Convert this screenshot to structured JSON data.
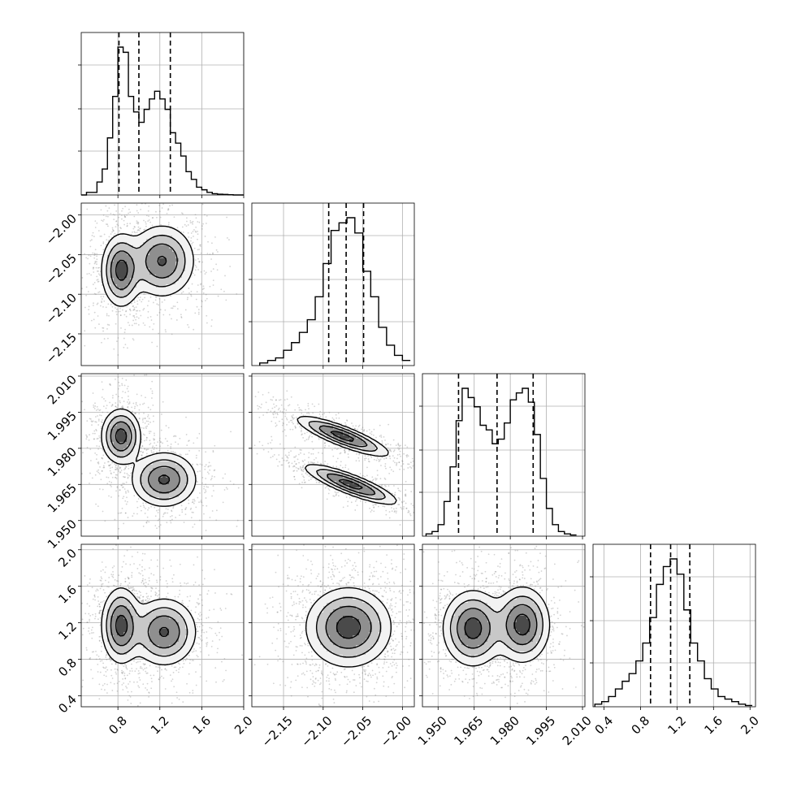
{
  "chart_data": {
    "type": "corner",
    "grid": true,
    "variables": [
      {
        "range": [
          0.45,
          2.0
        ],
        "ticks": [
          0.8,
          1.2,
          1.6,
          2.0
        ],
        "tick_labels": [
          "0.8",
          "1.2",
          "1.6",
          "2.0"
        ],
        "quantiles": [
          0.81,
          1.0,
          1.3
        ],
        "histogram": {
          "bins": [
            0.45,
            0.5,
            0.55,
            0.6,
            0.65,
            0.7,
            0.75,
            0.8,
            0.85,
            0.9,
            0.95,
            1.0,
            1.05,
            1.1,
            1.15,
            1.2,
            1.25,
            1.3,
            1.35,
            1.4,
            1.45,
            1.5,
            1.55,
            1.6,
            1.65,
            1.7,
            1.75,
            1.8,
            1.85,
            1.9,
            1.95,
            2.0
          ],
          "counts": [
            0,
            1,
            1,
            5,
            10,
            22,
            38,
            57,
            55,
            38,
            32,
            28,
            33,
            37,
            40,
            37,
            33,
            24,
            20,
            15,
            9,
            6,
            3,
            2,
            1,
            0.5,
            0.3,
            0.2,
            0.1,
            0,
            0
          ]
        }
      },
      {
        "range": [
          -2.19,
          -1.985
        ],
        "ticks": [
          -2.15,
          -2.1,
          -2.05,
          -2.0
        ],
        "tick_labels": [
          "−2.15",
          "−2.10",
          "−2.05",
          "−2.00"
        ],
        "quantiles": [
          -2.093,
          -2.071,
          -2.049
        ],
        "histogram": {
          "bins": [
            -2.18,
            -2.17,
            -2.16,
            -2.15,
            -2.14,
            -2.13,
            -2.12,
            -2.11,
            -2.1,
            -2.09,
            -2.08,
            -2.07,
            -2.06,
            -2.05,
            -2.04,
            -2.03,
            -2.02,
            -2.01,
            -2.0,
            -1.99
          ],
          "counts": [
            1,
            2,
            3,
            6,
            9,
            13,
            18,
            27,
            40,
            53,
            56,
            58,
            52,
            37,
            27,
            15,
            8,
            4,
            2
          ]
        }
      },
      {
        "range": [
          1.9435,
          2.011
        ],
        "ticks": [
          1.95,
          1.965,
          1.98,
          1.995,
          2.01
        ],
        "tick_labels": [
          "1.950",
          "1.965",
          "1.980",
          "1.995",
          "2.010"
        ],
        "quantiles": [
          1.9585,
          1.9745,
          1.9895
        ],
        "histogram": {
          "bins": [
            1.945,
            1.9475,
            1.95,
            1.9525,
            1.955,
            1.9575,
            1.96,
            1.9625,
            1.965,
            1.9675,
            1.97,
            1.9725,
            1.975,
            1.9775,
            1.98,
            1.9825,
            1.985,
            1.9875,
            1.99,
            1.9925,
            1.995,
            1.9975,
            2.0,
            2.0025,
            2.005,
            2.0075
          ],
          "counts": [
            1,
            2,
            5,
            15,
            30,
            50,
            64,
            60,
            56,
            48,
            46,
            40,
            42,
            49,
            59,
            62,
            64,
            58,
            44,
            25,
            12,
            5,
            2,
            1,
            0.5
          ]
        }
      },
      {
        "range": [
          0.28,
          2.06
        ],
        "ticks": [
          0.4,
          0.8,
          1.2,
          1.6,
          2.0
        ],
        "tick_labels": [
          "0.4",
          "0.8",
          "1.2",
          "1.6",
          "2.0"
        ],
        "quantiles": [
          0.91,
          1.13,
          1.34
        ],
        "histogram": {
          "bins": [
            0.3,
            0.375,
            0.45,
            0.525,
            0.6,
            0.675,
            0.75,
            0.825,
            0.9,
            0.975,
            1.05,
            1.125,
            1.2,
            1.275,
            1.35,
            1.425,
            1.5,
            1.575,
            1.65,
            1.725,
            1.8,
            1.875,
            1.95,
            2.025
          ],
          "counts": [
            1,
            2,
            4,
            7,
            10,
            13,
            18,
            25,
            35,
            48,
            55,
            58,
            52,
            38,
            25,
            18,
            11,
            7,
            4,
            3,
            2,
            1,
            0.5
          ]
        }
      }
    ],
    "joint_panels": [
      {
        "x": 0,
        "y": 1,
        "modes": [
          {
            "cx": 0.83,
            "cy": -2.07,
            "sx": 0.09,
            "sy": 0.022,
            "w": 1.0
          },
          {
            "cx": 1.22,
            "cy": -2.058,
            "sx": 0.15,
            "sy": 0.022,
            "w": 0.9
          }
        ]
      },
      {
        "x": 0,
        "y": 2,
        "modes": [
          {
            "cx": 0.83,
            "cy": 1.985,
            "sx": 0.09,
            "sy": 0.0055,
            "w": 1.0
          },
          {
            "cx": 1.24,
            "cy": 1.967,
            "sx": 0.15,
            "sy": 0.0055,
            "w": 0.9
          }
        ]
      },
      {
        "x": 1,
        "y": 2,
        "modes": [
          {
            "cx": -2.075,
            "cy": 1.985,
            "sx": 0.028,
            "sy": 0.004,
            "w": 1.0,
            "rho": -0.85
          },
          {
            "cx": -2.065,
            "cy": 1.965,
            "sx": 0.028,
            "sy": 0.004,
            "w": 1.0,
            "rho": -0.85
          }
        ]
      },
      {
        "x": 0,
        "y": 3,
        "modes": [
          {
            "cx": 0.83,
            "cy": 1.17,
            "sx": 0.09,
            "sy": 0.2,
            "w": 1.0
          },
          {
            "cx": 1.24,
            "cy": 1.1,
            "sx": 0.15,
            "sy": 0.18,
            "w": 0.9
          }
        ]
      },
      {
        "x": 1,
        "y": 3,
        "modes": [
          {
            "cx": -2.068,
            "cy": 1.15,
            "sx": 0.026,
            "sy": 0.21,
            "w": 1.0
          }
        ]
      },
      {
        "x": 2,
        "y": 3,
        "modes": [
          {
            "cx": 1.9645,
            "cy": 1.14,
            "sx": 0.006,
            "sy": 0.2,
            "w": 1.0
          },
          {
            "cx": 1.985,
            "cy": 1.18,
            "sx": 0.0055,
            "sy": 0.2,
            "w": 1.0
          }
        ]
      }
    ],
    "contour_levels": [
      0.12,
      0.3,
      0.55,
      0.85
    ],
    "colors": {
      "line": "#000000",
      "grid": "#b0b0b0",
      "points": "#808080"
    }
  }
}
